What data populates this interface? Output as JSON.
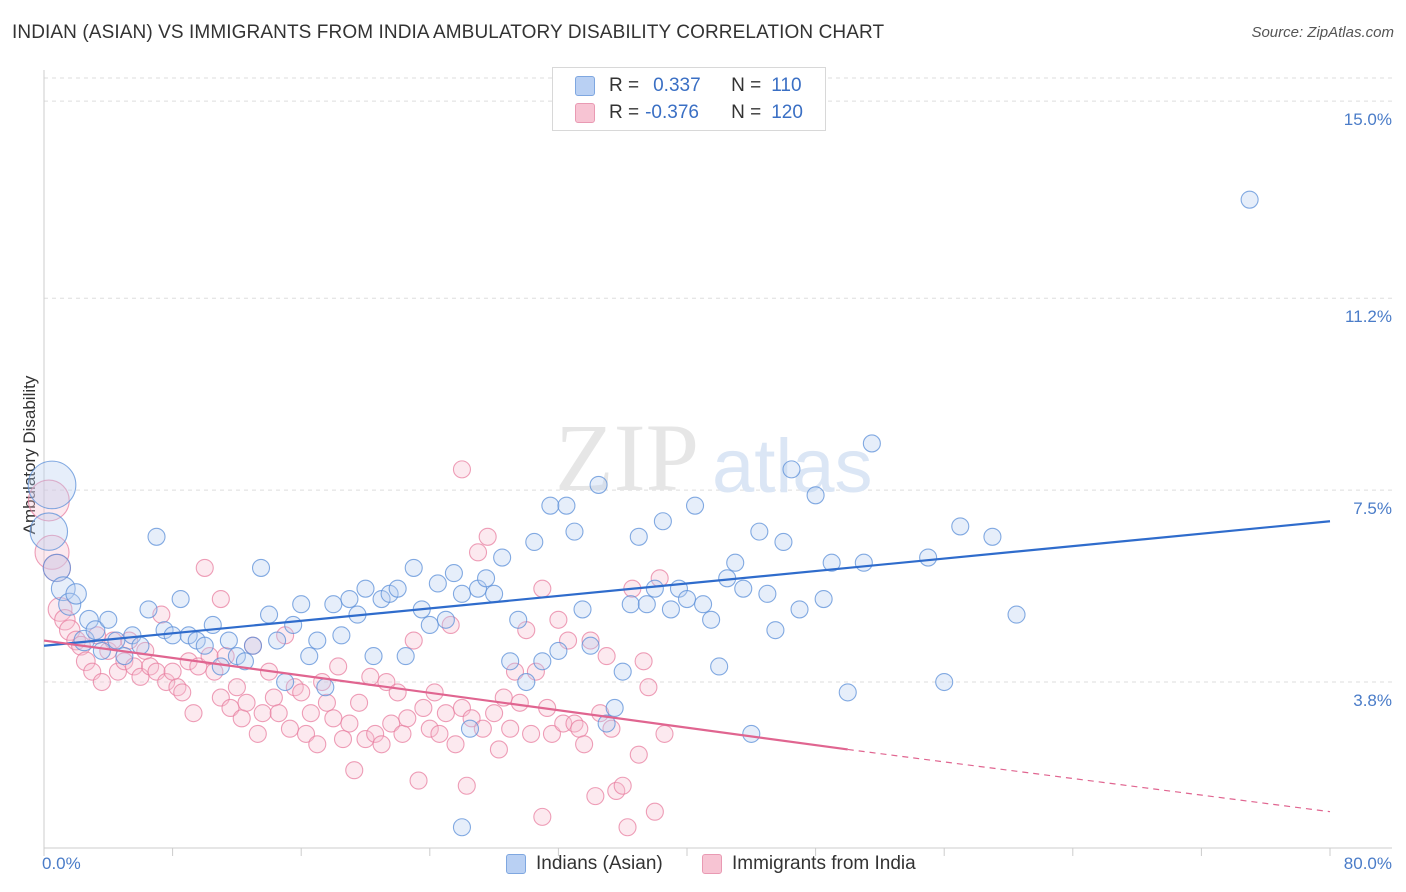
{
  "header": {
    "title": "INDIAN (ASIAN) VS IMMIGRANTS FROM INDIA AMBULATORY DISABILITY CORRELATION CHART",
    "source": "Source: ZipAtlas.com"
  },
  "watermark": {
    "text_zip": "ZIP",
    "text_atlas": "atlas"
  },
  "legend": {
    "rows": [
      {
        "r_label": "R =",
        "r_value": "0.337",
        "n_label": "N =",
        "n_value": "110"
      },
      {
        "r_label": "R =",
        "r_value": "-0.376",
        "n_label": "N =",
        "n_value": "120"
      }
    ]
  },
  "chart_data": {
    "type": "scatter",
    "title": "INDIAN (ASIAN) VS IMMIGRANTS FROM INDIA AMBULATORY DISABILITY CORRELATION CHART",
    "xlabel": "",
    "ylabel": "Ambulatory Disability",
    "xlim": [
      0,
      80
    ],
    "ylim": [
      0.6,
      15.6
    ],
    "x_tick_labels": [
      "0.0%",
      "80.0%"
    ],
    "y_ticks": [
      {
        "value": 3.8,
        "label": "3.8%"
      },
      {
        "value": 7.5,
        "label": "7.5%"
      },
      {
        "value": 11.2,
        "label": "11.2%"
      },
      {
        "value": 15.0,
        "label": "15.0%"
      }
    ],
    "grid": "horizontal dashed",
    "legend_position": "bottom",
    "colors": {
      "blue": "#5b8fd8",
      "pink": "#e87fa0",
      "blue_line": "#2f6ccc",
      "pink_line": "#e06590"
    },
    "series": [
      {
        "name": "Indians (Asian)",
        "color": "#5b8fd8",
        "trend": {
          "x": [
            0,
            80
          ],
          "y": [
            4.5,
            6.9
          ]
        },
        "points": [
          [
            0.5,
            7.6,
            28
          ],
          [
            0.3,
            6.7,
            22
          ],
          [
            0.8,
            6.0,
            16
          ],
          [
            1.2,
            5.6,
            14
          ],
          [
            1.6,
            5.3,
            13
          ],
          [
            2.0,
            5.5,
            12
          ],
          [
            2.5,
            4.6,
            12
          ],
          [
            2.8,
            5.0,
            11
          ],
          [
            3.2,
            4.8,
            11
          ],
          [
            3.6,
            4.4,
            10
          ],
          [
            4.0,
            5.0,
            10
          ],
          [
            4.5,
            4.6,
            10
          ],
          [
            5.0,
            4.3,
            10
          ],
          [
            5.5,
            4.7,
            10
          ],
          [
            6.0,
            4.5,
            10
          ],
          [
            6.5,
            5.2,
            10
          ],
          [
            7.0,
            6.6,
            10
          ],
          [
            7.5,
            4.8,
            10
          ],
          [
            8.0,
            4.7,
            10
          ],
          [
            8.5,
            5.4,
            10
          ],
          [
            9.0,
            4.7,
            10
          ],
          [
            9.5,
            4.6,
            10
          ],
          [
            10.0,
            4.5,
            10
          ],
          [
            10.5,
            4.9,
            10
          ],
          [
            11.0,
            4.1,
            10
          ],
          [
            11.5,
            4.6,
            10
          ],
          [
            12.0,
            4.3,
            10
          ],
          [
            12.5,
            4.2,
            10
          ],
          [
            13.0,
            4.5,
            10
          ],
          [
            13.5,
            6.0,
            10
          ],
          [
            14.0,
            5.1,
            10
          ],
          [
            14.5,
            4.6,
            10
          ],
          [
            15.0,
            3.8,
            10
          ],
          [
            15.5,
            4.9,
            10
          ],
          [
            16.0,
            5.3,
            10
          ],
          [
            16.5,
            4.3,
            10
          ],
          [
            17.0,
            4.6,
            10
          ],
          [
            17.5,
            3.7,
            10
          ],
          [
            18.0,
            5.3,
            10
          ],
          [
            18.5,
            4.7,
            10
          ],
          [
            19.0,
            5.4,
            10
          ],
          [
            19.5,
            5.1,
            10
          ],
          [
            20.0,
            5.6,
            10
          ],
          [
            20.5,
            4.3,
            10
          ],
          [
            21.0,
            5.4,
            10
          ],
          [
            21.5,
            5.5,
            10
          ],
          [
            22.0,
            5.6,
            10
          ],
          [
            22.5,
            4.3,
            10
          ],
          [
            23.0,
            6.0,
            10
          ],
          [
            23.5,
            5.2,
            10
          ],
          [
            24.0,
            4.9,
            10
          ],
          [
            24.5,
            5.7,
            10
          ],
          [
            25.0,
            5.0,
            10
          ],
          [
            25.5,
            5.9,
            10
          ],
          [
            26.0,
            5.5,
            10
          ],
          [
            26.5,
            2.9,
            10
          ],
          [
            27.0,
            5.6,
            10
          ],
          [
            27.5,
            5.8,
            10
          ],
          [
            28.0,
            5.5,
            10
          ],
          [
            28.5,
            6.2,
            10
          ],
          [
            29.0,
            4.2,
            10
          ],
          [
            29.5,
            5.0,
            10
          ],
          [
            30.0,
            3.8,
            10
          ],
          [
            30.5,
            6.5,
            10
          ],
          [
            31.0,
            4.2,
            10
          ],
          [
            31.5,
            7.2,
            10
          ],
          [
            32.0,
            4.4,
            10
          ],
          [
            32.5,
            7.2,
            10
          ],
          [
            33.0,
            6.7,
            10
          ],
          [
            33.5,
            5.2,
            10
          ],
          [
            34.0,
            4.5,
            10
          ],
          [
            34.5,
            7.6,
            10
          ],
          [
            35.0,
            3.0,
            10
          ],
          [
            35.5,
            3.3,
            10
          ],
          [
            36.0,
            4.0,
            10
          ],
          [
            36.5,
            5.3,
            10
          ],
          [
            37.0,
            6.6,
            10
          ],
          [
            37.5,
            5.3,
            10
          ],
          [
            38.0,
            5.6,
            10
          ],
          [
            38.5,
            6.9,
            10
          ],
          [
            39.0,
            5.2,
            10
          ],
          [
            39.5,
            5.6,
            10
          ],
          [
            40.0,
            5.4,
            10
          ],
          [
            40.5,
            7.2,
            10
          ],
          [
            41.0,
            5.3,
            10
          ],
          [
            41.5,
            5.0,
            10
          ],
          [
            42.0,
            4.1,
            10
          ],
          [
            42.5,
            5.8,
            10
          ],
          [
            43.0,
            6.1,
            10
          ],
          [
            43.5,
            5.6,
            10
          ],
          [
            44.0,
            2.8,
            10
          ],
          [
            44.5,
            6.7,
            10
          ],
          [
            45.0,
            5.5,
            10
          ],
          [
            45.5,
            4.8,
            10
          ],
          [
            46.0,
            6.5,
            10
          ],
          [
            46.5,
            7.9,
            10
          ],
          [
            47.0,
            5.2,
            10
          ],
          [
            48.0,
            7.4,
            10
          ],
          [
            48.5,
            5.4,
            10
          ],
          [
            49.0,
            6.1,
            10
          ],
          [
            50.0,
            3.6,
            10
          ],
          [
            51.0,
            6.1,
            10
          ],
          [
            51.5,
            8.4,
            10
          ],
          [
            55.0,
            6.2,
            10
          ],
          [
            56.0,
            3.8,
            10
          ],
          [
            57.0,
            6.8,
            10
          ],
          [
            59.0,
            6.6,
            10
          ],
          [
            60.5,
            5.1,
            10
          ],
          [
            26.0,
            1.0,
            10
          ],
          [
            75.0,
            13.1,
            10
          ]
        ]
      },
      {
        "name": "Immigrants from India",
        "color": "#e87fa0",
        "trend": {
          "x": [
            0,
            50
          ],
          "y": [
            4.6,
            2.5
          ]
        },
        "trend_dashed": {
          "x": [
            50,
            80
          ],
          "y": [
            2.5,
            1.3
          ]
        },
        "points": [
          [
            0.3,
            7.3,
            24
          ],
          [
            0.5,
            6.3,
            20
          ],
          [
            0.8,
            6.0,
            16
          ],
          [
            1.0,
            5.2,
            14
          ],
          [
            1.3,
            5.0,
            12
          ],
          [
            1.6,
            4.8,
            12
          ],
          [
            2.0,
            4.6,
            11
          ],
          [
            2.3,
            4.5,
            11
          ],
          [
            2.6,
            4.2,
            11
          ],
          [
            3.0,
            4.0,
            10
          ],
          [
            3.3,
            4.7,
            10
          ],
          [
            3.6,
            3.8,
            10
          ],
          [
            4.0,
            4.4,
            10
          ],
          [
            4.3,
            4.6,
            10
          ],
          [
            4.6,
            4.0,
            10
          ],
          [
            5.0,
            4.2,
            10
          ],
          [
            5.3,
            4.6,
            10
          ],
          [
            5.6,
            4.1,
            10
          ],
          [
            6.0,
            3.9,
            10
          ],
          [
            6.3,
            4.4,
            10
          ],
          [
            6.6,
            4.1,
            10
          ],
          [
            7.0,
            4.0,
            10
          ],
          [
            7.3,
            5.1,
            10
          ],
          [
            7.6,
            3.8,
            10
          ],
          [
            8.0,
            4.0,
            10
          ],
          [
            8.3,
            3.7,
            10
          ],
          [
            8.6,
            3.6,
            10
          ],
          [
            9.0,
            4.2,
            10
          ],
          [
            9.3,
            3.2,
            10
          ],
          [
            9.6,
            4.1,
            10
          ],
          [
            10.0,
            6.0,
            10
          ],
          [
            10.3,
            4.3,
            10
          ],
          [
            10.6,
            4.0,
            10
          ],
          [
            11.0,
            3.5,
            10
          ],
          [
            11.3,
            4.3,
            10
          ],
          [
            11.6,
            3.3,
            10
          ],
          [
            12.0,
            3.7,
            10
          ],
          [
            12.3,
            3.1,
            10
          ],
          [
            12.6,
            3.4,
            10
          ],
          [
            13.0,
            4.5,
            10
          ],
          [
            13.3,
            2.8,
            10
          ],
          [
            13.6,
            3.2,
            10
          ],
          [
            14.0,
            4.0,
            10
          ],
          [
            14.3,
            3.5,
            10
          ],
          [
            14.6,
            3.2,
            10
          ],
          [
            15.0,
            4.7,
            10
          ],
          [
            15.3,
            2.9,
            10
          ],
          [
            15.6,
            3.7,
            10
          ],
          [
            16.0,
            3.6,
            10
          ],
          [
            16.3,
            2.8,
            10
          ],
          [
            16.6,
            3.2,
            10
          ],
          [
            17.0,
            2.6,
            10
          ],
          [
            17.3,
            3.8,
            10
          ],
          [
            17.6,
            3.4,
            10
          ],
          [
            18.0,
            3.1,
            10
          ],
          [
            18.3,
            4.1,
            10
          ],
          [
            18.6,
            2.7,
            10
          ],
          [
            19.0,
            3.0,
            10
          ],
          [
            19.3,
            2.1,
            10
          ],
          [
            19.6,
            3.4,
            10
          ],
          [
            20.0,
            2.7,
            10
          ],
          [
            20.3,
            3.9,
            10
          ],
          [
            20.6,
            2.8,
            10
          ],
          [
            21.0,
            2.6,
            10
          ],
          [
            21.3,
            3.8,
            10
          ],
          [
            21.6,
            3.0,
            10
          ],
          [
            22.0,
            3.6,
            10
          ],
          [
            22.3,
            2.8,
            10
          ],
          [
            22.6,
            3.1,
            10
          ],
          [
            23.0,
            4.6,
            10
          ],
          [
            23.3,
            1.9,
            10
          ],
          [
            23.6,
            3.3,
            10
          ],
          [
            24.0,
            2.9,
            10
          ],
          [
            24.3,
            3.6,
            10
          ],
          [
            24.6,
            2.8,
            10
          ],
          [
            25.0,
            3.2,
            10
          ],
          [
            25.3,
            4.9,
            10
          ],
          [
            25.6,
            2.6,
            10
          ],
          [
            26.0,
            3.3,
            10
          ],
          [
            26.3,
            1.8,
            10
          ],
          [
            26.6,
            3.1,
            10
          ],
          [
            27.0,
            6.3,
            10
          ],
          [
            27.3,
            2.9,
            10
          ],
          [
            27.6,
            6.6,
            10
          ],
          [
            28.0,
            3.2,
            10
          ],
          [
            28.3,
            2.5,
            10
          ],
          [
            28.6,
            3.5,
            10
          ],
          [
            29.0,
            2.9,
            10
          ],
          [
            29.3,
            4.0,
            10
          ],
          [
            29.6,
            3.4,
            10
          ],
          [
            30.0,
            4.8,
            10
          ],
          [
            30.3,
            2.8,
            10
          ],
          [
            30.6,
            4.0,
            10
          ],
          [
            31.0,
            5.6,
            10
          ],
          [
            31.3,
            3.3,
            10
          ],
          [
            31.6,
            2.8,
            10
          ],
          [
            32.0,
            5.0,
            10
          ],
          [
            32.3,
            3.0,
            10
          ],
          [
            32.6,
            4.6,
            10
          ],
          [
            33.0,
            3.0,
            10
          ],
          [
            33.3,
            2.9,
            10
          ],
          [
            33.6,
            2.6,
            10
          ],
          [
            34.0,
            4.6,
            10
          ],
          [
            34.3,
            1.6,
            10
          ],
          [
            34.6,
            3.2,
            10
          ],
          [
            35.0,
            4.3,
            10
          ],
          [
            35.3,
            2.9,
            10
          ],
          [
            35.6,
            1.7,
            10
          ],
          [
            36.0,
            1.8,
            10
          ],
          [
            36.3,
            1.0,
            10
          ],
          [
            36.6,
            5.6,
            10
          ],
          [
            37.0,
            2.4,
            10
          ],
          [
            37.3,
            4.2,
            10
          ],
          [
            37.6,
            3.7,
            10
          ],
          [
            38.0,
            1.3,
            10
          ],
          [
            38.3,
            5.8,
            10
          ],
          [
            38.6,
            2.8,
            10
          ],
          [
            26.0,
            7.9,
            10
          ],
          [
            31.0,
            1.2,
            10
          ],
          [
            11.0,
            5.4,
            10
          ]
        ]
      }
    ]
  },
  "bottom_legend": {
    "items": [
      {
        "label": "Indians (Asian)"
      },
      {
        "label": "Immigrants from India"
      }
    ]
  }
}
